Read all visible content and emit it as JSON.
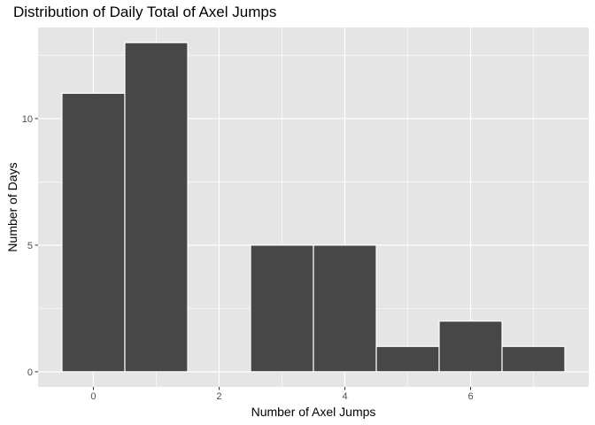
{
  "chart_data": {
    "type": "bar",
    "title": "Distribution of Daily Total of Axel Jumps",
    "xlabel": "Number of Axel Jumps",
    "ylabel": "Number of Days",
    "bins": [
      {
        "x": 0,
        "count": 11
      },
      {
        "x": 1,
        "count": 13
      },
      {
        "x": 2,
        "count": 0
      },
      {
        "x": 3,
        "count": 5
      },
      {
        "x": 4,
        "count": 5
      },
      {
        "x": 5,
        "count": 1
      },
      {
        "x": 6,
        "count": 2
      },
      {
        "x": 7,
        "count": 1
      }
    ],
    "bin_width": 1,
    "xlim": [
      -0.88,
      7.88
    ],
    "ylim": [
      -0.6,
      13.6
    ],
    "x_ticks": [
      0,
      2,
      4,
      6
    ],
    "y_ticks": [
      0,
      5,
      10
    ],
    "x_tick_labels": [
      "0",
      "2",
      "4",
      "6"
    ],
    "y_tick_labels": [
      "0",
      "5",
      "10"
    ],
    "grid": true,
    "colors": {
      "panel_background": "#e5e5e5",
      "grid": "#ffffff",
      "bar_fill": "#474747",
      "bar_outline": "#ffffff",
      "tick_text": "#4d4d4d"
    }
  }
}
